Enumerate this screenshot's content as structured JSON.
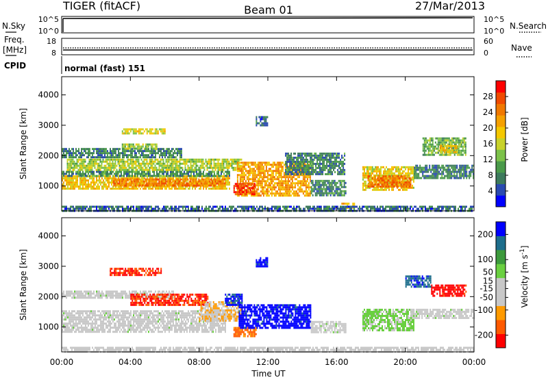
{
  "header": {
    "title_left": "TIGER (fitACF)",
    "title_center": "Beam 01",
    "title_right": "27/Mar/2013"
  },
  "summary_panels": {
    "nsky": {
      "label": "N.Sky",
      "y_ticks": [
        "10^5",
        "10^0"
      ],
      "right_label": "N.Search",
      "right_ticks": [
        "10^5",
        "10^0"
      ]
    },
    "freq": {
      "label_1": "Freq.",
      "label_2": "[MHz]",
      "left_ticks": [
        "18",
        "8"
      ],
      "right_label": "Nave",
      "right_ticks": [
        "60",
        "0"
      ]
    },
    "cpid": {
      "label": "CPID",
      "value": "normal (fast) 151"
    }
  },
  "colors": {
    "power_scale": [
      "#0000ff",
      "#2a4ab0",
      "#3d7a5c",
      "#4a9a4a",
      "#7cc24a",
      "#c8d22a",
      "#f5c800",
      "#f5a000",
      "#f07800",
      "#f04a00",
      "#ff0000"
    ],
    "velocity_scale": [
      "#ff0000",
      "#ff5a00",
      "#ff9a00",
      "#c8c8c8",
      "#c8c8c8",
      "#6ad040",
      "#3c9a3c",
      "#1e6e8c",
      "#0000ff"
    ]
  },
  "chart_data": [
    {
      "type": "heatmap",
      "name": "power",
      "ylabel": "Slant Range [km]",
      "xlabel": "",
      "x_ticks": [
        "00:00",
        "04:00",
        "08:00",
        "12:00",
        "16:00",
        "20:00",
        "00:00"
      ],
      "y_ticks": [
        1000,
        2000,
        3000,
        4000
      ],
      "ylim": [
        180,
        4600
      ],
      "xlim_hours": [
        0,
        24
      ],
      "colorbar": {
        "label": "Power [dB]",
        "ticks": [
          4,
          8,
          12,
          16,
          20,
          24,
          28
        ],
        "range": [
          0,
          32
        ]
      },
      "regions": [
        {
          "t0": 0.0,
          "t1": 9.8,
          "r0": 900,
          "r1": 1350,
          "v": 19
        },
        {
          "t0": 0.0,
          "t1": 9.8,
          "r0": 1350,
          "r1": 1500,
          "v": 9
        },
        {
          "t0": 3.0,
          "t1": 9.5,
          "r0": 1000,
          "r1": 1250,
          "v": 24
        },
        {
          "t0": 0.3,
          "t1": 10.5,
          "r0": 1500,
          "r1": 1900,
          "v": 15
        },
        {
          "t0": 0.0,
          "t1": 7.0,
          "r0": 1950,
          "r1": 2250,
          "v": 8
        },
        {
          "t0": 3.5,
          "t1": 5.5,
          "r0": 2250,
          "r1": 2400,
          "v": 14
        },
        {
          "t0": 3.5,
          "t1": 6.0,
          "r0": 2700,
          "r1": 2900,
          "v": 17
        },
        {
          "t0": 10.2,
          "t1": 14.5,
          "r0": 700,
          "r1": 1800,
          "v": 22
        },
        {
          "t0": 10.0,
          "t1": 11.2,
          "r0": 700,
          "r1": 1100,
          "v": 28
        },
        {
          "t0": 13.0,
          "t1": 16.5,
          "r0": 1400,
          "r1": 2100,
          "v": 8
        },
        {
          "t0": 14.5,
          "t1": 16.5,
          "r0": 700,
          "r1": 1200,
          "v": 8
        },
        {
          "t0": 16.2,
          "t1": 17.0,
          "r0": 250,
          "r1": 450,
          "v": 20
        },
        {
          "t0": 17.5,
          "t1": 20.5,
          "r0": 900,
          "r1": 1650,
          "v": 18
        },
        {
          "t0": 17.8,
          "t1": 20.3,
          "r0": 1000,
          "r1": 1350,
          "v": 25
        },
        {
          "t0": 20.5,
          "t1": 24.0,
          "r0": 1250,
          "r1": 1700,
          "v": 8
        },
        {
          "t0": 21.0,
          "t1": 23.5,
          "r0": 2000,
          "r1": 2600,
          "v": 12
        },
        {
          "t0": 22.0,
          "t1": 23.0,
          "r0": 2100,
          "r1": 2350,
          "v": 20
        },
        {
          "t0": 11.3,
          "t1": 12.0,
          "r0": 3000,
          "r1": 3300,
          "v": 6
        },
        {
          "t0": 0.0,
          "t1": 24.0,
          "r0": 200,
          "r1": 350,
          "v": 6
        }
      ]
    },
    {
      "type": "heatmap",
      "name": "velocity",
      "ylabel": "Slant Range [km]",
      "xlabel": "Time UT",
      "x_ticks": [
        "00:00",
        "04:00",
        "08:00",
        "12:00",
        "16:00",
        "20:00",
        "00:00"
      ],
      "y_ticks": [
        1000,
        2000,
        3000,
        4000
      ],
      "ylim": [
        180,
        4600
      ],
      "xlim_hours": [
        0,
        24
      ],
      "colorbar": {
        "label": "Velocity [m s^-1]",
        "ticks": [
          -200,
          -100,
          -50,
          -15,
          15,
          50,
          100,
          200
        ],
        "range": [
          -250,
          250
        ]
      },
      "regions": [
        {
          "t0": 0.0,
          "t1": 9.5,
          "r0": 850,
          "r1": 1550,
          "v": 0
        },
        {
          "t0": 0.0,
          "t1": 6.5,
          "r0": 1950,
          "r1": 2200,
          "v": 0
        },
        {
          "t0": 4.0,
          "t1": 8.5,
          "r0": 1700,
          "r1": 2100,
          "v": -200
        },
        {
          "t0": 2.8,
          "t1": 5.8,
          "r0": 2700,
          "r1": 2950,
          "v": -200
        },
        {
          "t0": 8.0,
          "t1": 10.5,
          "r0": 1200,
          "r1": 1850,
          "v": -80
        },
        {
          "t0": 10.0,
          "t1": 11.3,
          "r0": 700,
          "r1": 1000,
          "v": -150
        },
        {
          "t0": 10.3,
          "t1": 14.5,
          "r0": 1000,
          "r1": 1750,
          "v": 220
        },
        {
          "t0": 9.5,
          "t1": 10.5,
          "r0": 1700,
          "r1": 2100,
          "v": 200
        },
        {
          "t0": 11.3,
          "t1": 12.0,
          "r0": 3000,
          "r1": 3300,
          "v": 220
        },
        {
          "t0": 14.5,
          "t1": 16.5,
          "r0": 800,
          "r1": 1200,
          "v": 0
        },
        {
          "t0": 17.5,
          "t1": 20.5,
          "r0": 900,
          "r1": 1600,
          "v": 40
        },
        {
          "t0": 20.3,
          "t1": 24.0,
          "r0": 1300,
          "r1": 1600,
          "v": 0
        },
        {
          "t0": 21.5,
          "t1": 23.5,
          "r0": 2000,
          "r1": 2400,
          "v": -220
        },
        {
          "t0": 20.0,
          "t1": 21.5,
          "r0": 2300,
          "r1": 2700,
          "v": 180
        },
        {
          "t0": 0.0,
          "t1": 24.0,
          "r0": 200,
          "r1": 350,
          "v": -30
        }
      ]
    }
  ]
}
